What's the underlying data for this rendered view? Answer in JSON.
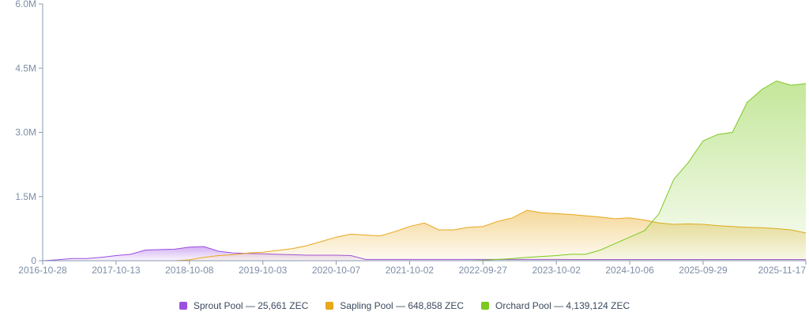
{
  "chart_data": {
    "type": "area",
    "categories": [
      "2016-10-28",
      null,
      null,
      null,
      null,
      "2017-10-13",
      null,
      null,
      null,
      null,
      "2018-10-08",
      null,
      null,
      null,
      null,
      "2019-10-03",
      null,
      null,
      null,
      null,
      "2020-10-07",
      null,
      null,
      null,
      null,
      "2021-10-02",
      null,
      null,
      null,
      null,
      "2022-09-27",
      null,
      null,
      null,
      null,
      "2023-10-02",
      null,
      null,
      null,
      null,
      "2024-10-06",
      null,
      null,
      null,
      null,
      "2025-09-29",
      null,
      null,
      null,
      null,
      null,
      null,
      "2025-11-17"
    ],
    "ylim": [
      0,
      6000000
    ],
    "yticks": [
      0,
      {
        "value": 1500000,
        "label": "1.5M"
      },
      {
        "value": 3000000,
        "label": "3.0M"
      },
      {
        "value": 4500000,
        "label": "4.5M"
      },
      {
        "value": 6000000,
        "label": "6.0M"
      }
    ],
    "series": [
      {
        "name": "Sprout Pool — 25,661 ZEC",
        "color": "#9b4fe0",
        "values": [
          0,
          20000,
          50000,
          50000,
          80000,
          120000,
          150000,
          250000,
          260000,
          270000,
          320000,
          330000,
          220000,
          180000,
          170000,
          160000,
          150000,
          140000,
          130000,
          130000,
          130000,
          120000,
          30000,
          30000,
          30000,
          30000,
          30000,
          30000,
          30000,
          30000,
          30000,
          30000,
          30000,
          30000,
          30000,
          30000,
          28000,
          28000,
          28000,
          28000,
          28000,
          28000,
          28000,
          28000,
          28000,
          28000,
          28000,
          28000,
          28000,
          28000,
          28000,
          28000,
          25661
        ]
      },
      {
        "name": "Sapling Pool — 648,858 ZEC",
        "color": "#e8a81c",
        "values": [
          0,
          0,
          0,
          0,
          0,
          0,
          0,
          0,
          0,
          0,
          20000,
          80000,
          120000,
          140000,
          180000,
          200000,
          240000,
          280000,
          350000,
          450000,
          550000,
          620000,
          600000,
          580000,
          680000,
          800000,
          880000,
          720000,
          720000,
          780000,
          800000,
          920000,
          1000000,
          1180000,
          1120000,
          1100000,
          1080000,
          1050000,
          1020000,
          980000,
          1000000,
          950000,
          880000,
          850000,
          860000,
          850000,
          820000,
          800000,
          780000,
          770000,
          750000,
          720000,
          648858
        ]
      },
      {
        "name": "Orchard Pool — 4,139,124 ZEC",
        "color": "#7cc91f",
        "values": [
          0,
          0,
          0,
          0,
          0,
          0,
          0,
          0,
          0,
          0,
          0,
          0,
          0,
          0,
          0,
          0,
          0,
          0,
          0,
          0,
          0,
          0,
          0,
          0,
          0,
          0,
          0,
          0,
          0,
          0,
          10000,
          30000,
          50000,
          80000,
          100000,
          120000,
          150000,
          150000,
          250000,
          400000,
          550000,
          700000,
          1100000,
          1900000,
          2300000,
          2800000,
          2950000,
          3000000,
          3700000,
          4000000,
          4200000,
          4100000,
          4139124
        ]
      }
    ]
  }
}
